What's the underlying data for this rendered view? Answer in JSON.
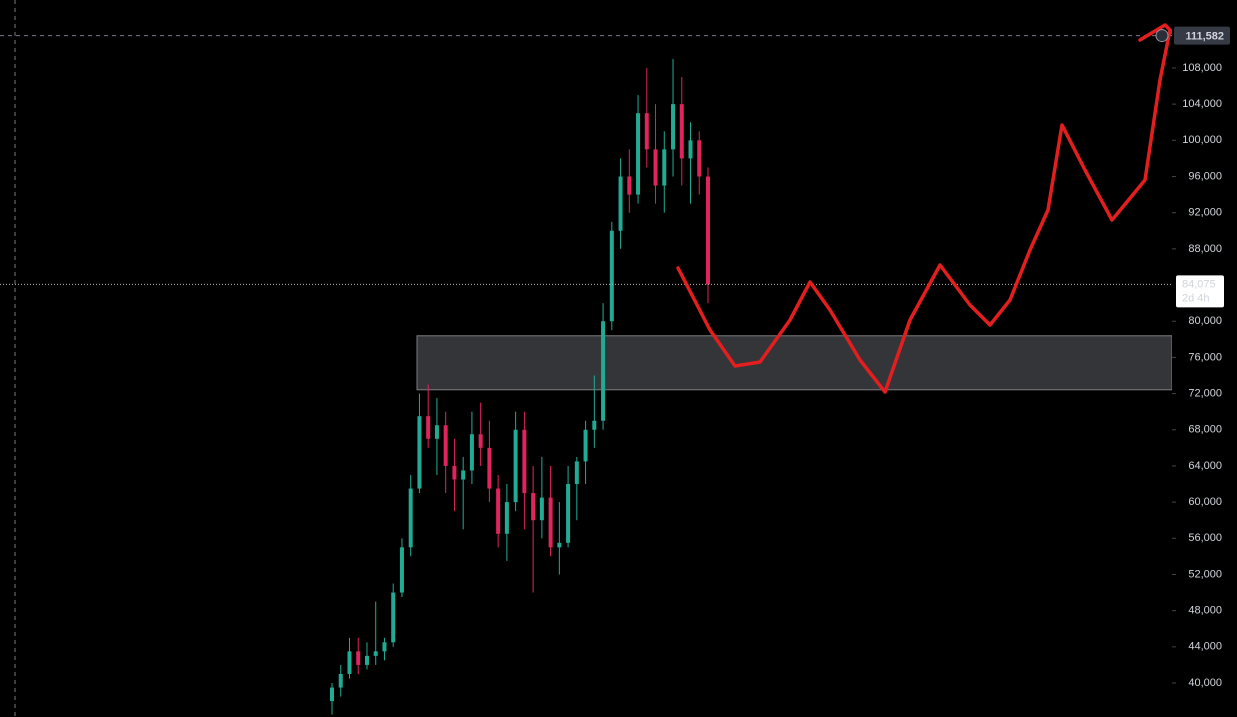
{
  "chart_data": {
    "type": "candlestick",
    "ylim": [
      36243,
      115514
    ],
    "yticks": [
      {
        "value": 40000,
        "label": "40,000"
      },
      {
        "value": 44000,
        "label": "44,000"
      },
      {
        "value": 48000,
        "label": "48,000"
      },
      {
        "value": 52000,
        "label": "52,000"
      },
      {
        "value": 56000,
        "label": "56,000"
      },
      {
        "value": 60000,
        "label": "60,000"
      },
      {
        "value": 64000,
        "label": "64,000"
      },
      {
        "value": 68000,
        "label": "68,000"
      },
      {
        "value": 72000,
        "label": "72,000"
      },
      {
        "value": 76000,
        "label": "76,000"
      },
      {
        "value": 80000,
        "label": "80,000"
      },
      {
        "value": 88000,
        "label": "88,000"
      },
      {
        "value": 92000,
        "label": "92,000"
      },
      {
        "value": 96000,
        "label": "96,000"
      },
      {
        "value": 100000,
        "label": "100,000"
      },
      {
        "value": 104000,
        "label": "104,000"
      },
      {
        "value": 108000,
        "label": "108,000"
      }
    ],
    "up_color": "#22ab94",
    "down_color": "#e0245e",
    "open": [
      38000,
      39500,
      41000,
      43500,
      42000,
      43000,
      43500,
      44500,
      50000,
      55000,
      61500,
      69500,
      67000,
      68500,
      64000,
      62500,
      63500,
      67500,
      66000,
      61500,
      56500,
      60000,
      68000,
      61000,
      58000,
      60500,
      55000,
      55500,
      62000,
      64500,
      68000,
      69000,
      80000,
      90000,
      96000,
      94000,
      103000,
      99000,
      95000,
      99000,
      104000,
      98000,
      100000,
      96000
    ],
    "high": [
      40000,
      42000,
      45000,
      45000,
      44500,
      49000,
      45000,
      51000,
      56000,
      63000,
      72000,
      73000,
      71500,
      70000,
      67000,
      65000,
      70000,
      71000,
      69000,
      63000,
      62000,
      70000,
      70000,
      64000,
      65000,
      64000,
      60000,
      64000,
      65000,
      69000,
      74000,
      82000,
      91000,
      98000,
      99000,
      105000,
      108000,
      104000,
      101000,
      109000,
      107000,
      102000,
      101000,
      97000
    ],
    "low": [
      36500,
      38500,
      40500,
      41000,
      41500,
      42000,
      42500,
      44000,
      49500,
      54000,
      61000,
      66000,
      63000,
      61000,
      59000,
      57000,
      62000,
      64000,
      60000,
      55000,
      53500,
      59000,
      57000,
      50000,
      56000,
      54000,
      52000,
      55000,
      58000,
      62000,
      66000,
      68000,
      79000,
      88000,
      92000,
      93000,
      97000,
      93000,
      92000,
      96000,
      95000,
      93000,
      94000,
      82000
    ],
    "close": [
      39500,
      41000,
      43500,
      42000,
      43000,
      43500,
      44500,
      50000,
      55000,
      61500,
      69500,
      67000,
      68500,
      64000,
      62500,
      63500,
      67500,
      66000,
      61500,
      56500,
      60000,
      68000,
      61000,
      58000,
      60500,
      55000,
      55500,
      62000,
      64500,
      68000,
      69000,
      80000,
      90000,
      96000,
      94000,
      103000,
      99000,
      95000,
      99000,
      104000,
      98000,
      100000,
      96000,
      84075
    ],
    "zone": [
      72420,
      78390
    ],
    "crosshair_price": {
      "value": 111582,
      "label": "111,582"
    },
    "last_price": {
      "value": 84075,
      "label": "84,075"
    },
    "countdown": "2d 4h"
  }
}
